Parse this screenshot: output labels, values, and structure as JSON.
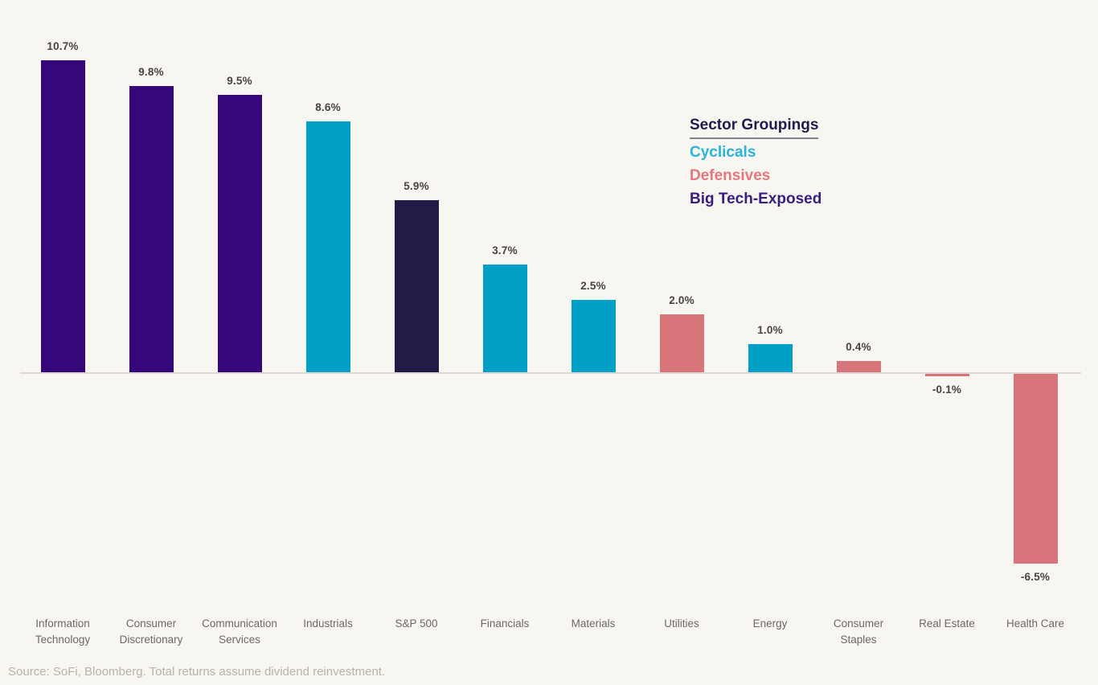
{
  "chart_data": {
    "type": "bar",
    "categories": [
      "Information Technology",
      "Consumer Discretionary",
      "Communication Services",
      "Industrials",
      "S&P 500",
      "Financials",
      "Materials",
      "Utilities",
      "Energy",
      "Consumer Staples",
      "Real Estate",
      "Health Care"
    ],
    "values": [
      10.7,
      9.8,
      9.5,
      8.6,
      5.9,
      3.7,
      2.5,
      2.0,
      1.0,
      0.4,
      -0.1,
      -6.5
    ],
    "value_labels": [
      "10.7%",
      "9.8%",
      "9.5%",
      "8.6%",
      "5.9%",
      "3.7%",
      "2.5%",
      "2.0%",
      "1.0%",
      "0.4%",
      "-0.1%",
      "-6.5%"
    ],
    "groups": [
      "big_tech_exposed",
      "big_tech_exposed",
      "big_tech_exposed",
      "cyclicals",
      "sp500",
      "cyclicals",
      "cyclicals",
      "defensives",
      "cyclicals",
      "defensives",
      "defensives",
      "defensives"
    ],
    "group_colors": {
      "big_tech_exposed": "#35077b",
      "cyclicals": "#00a0c6",
      "defensives": "#d8757b",
      "sp500": "#221a47"
    },
    "title": "",
    "xlabel": "",
    "ylabel": "",
    "ylim": [
      -7.5,
      11.5
    ],
    "grid": false,
    "legend_position": "upper-right"
  },
  "legend": {
    "title": "Sector Groupings",
    "title_color": "#221b4e",
    "items": [
      {
        "label": "Cyclicals",
        "color": "#29b5d8"
      },
      {
        "label": "Defensives",
        "color": "#e8767c"
      },
      {
        "label": "Big Tech-Exposed",
        "color": "#3b1d82"
      }
    ]
  },
  "footer": {
    "source": "Source: SoFi, Bloomberg. Total returns assume dividend reinvestment."
  },
  "theme": {
    "background": "#f8f6f1",
    "axis_line": "#ddd9d2",
    "value_label_color": "#474441",
    "category_label_color": "#6d6a66",
    "source_text_color": "#b8b3aa"
  }
}
